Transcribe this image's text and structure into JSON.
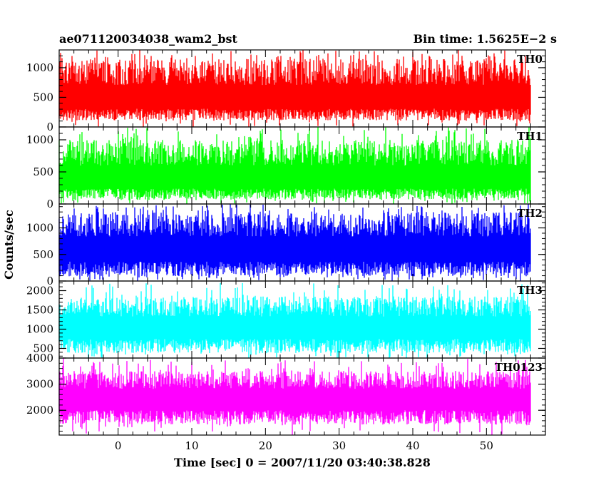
{
  "chart_data": {
    "type": "line",
    "title_left": "ae071120034038_wam2_bst",
    "title_right": "Bin time: 1.5625E−2 s",
    "xlabel": "Time [sec] 0 = 2007/11/20 03:40:38.828",
    "ylabel": "Counts/sec",
    "xlim": [
      -8,
      58
    ],
    "x_data_range": [
      -8,
      56
    ],
    "x_ticks": [
      0,
      10,
      20,
      30,
      40,
      50
    ],
    "x_tick_labels": [
      "0",
      "10",
      "20",
      "30",
      "40",
      "50"
    ],
    "bin_time": 0.015625,
    "panels": [
      {
        "name": "TH0",
        "color": "#ff0000",
        "ylim": [
          0,
          1300
        ],
        "y_ticks": [
          0,
          500,
          1000
        ],
        "y_tick_labels": [
          "0",
          "500",
          "1000"
        ],
        "mean": 470,
        "low": 110,
        "high": 1150,
        "peak": 1300
      },
      {
        "name": "TH1",
        "color": "#00ff00",
        "ylim": [
          0,
          1200
        ],
        "y_ticks": [
          0,
          500,
          1000
        ],
        "y_tick_labels": [
          "0",
          "500",
          "1000"
        ],
        "mean": 380,
        "low": 70,
        "high": 1000,
        "peak": 1200
      },
      {
        "name": "TH2",
        "color": "#0000ff",
        "ylim": [
          0,
          1450
        ],
        "y_ticks": [
          0,
          500,
          1000
        ],
        "y_tick_labels": [
          "0",
          "500",
          "1000"
        ],
        "mean": 590,
        "low": 90,
        "high": 1300,
        "peak": 1450
      },
      {
        "name": "TH3",
        "color": "#00ffff",
        "ylim": [
          250,
          2250
        ],
        "y_ticks": [
          500,
          1000,
          1500,
          2000
        ],
        "y_tick_labels": [
          "500",
          "1000",
          "1500",
          "2000"
        ],
        "mean": 1050,
        "low": 380,
        "high": 1850,
        "peak": 2200
      },
      {
        "name": "TH0123",
        "color": "#ff00ff",
        "ylim": [
          1050,
          4000
        ],
        "y_ticks": [
          2000,
          3000,
          4000
        ],
        "y_tick_labels": [
          "2000",
          "3000",
          "4000"
        ],
        "mean": 2450,
        "low": 1450,
        "high": 3500,
        "peak": 4000
      }
    ]
  }
}
